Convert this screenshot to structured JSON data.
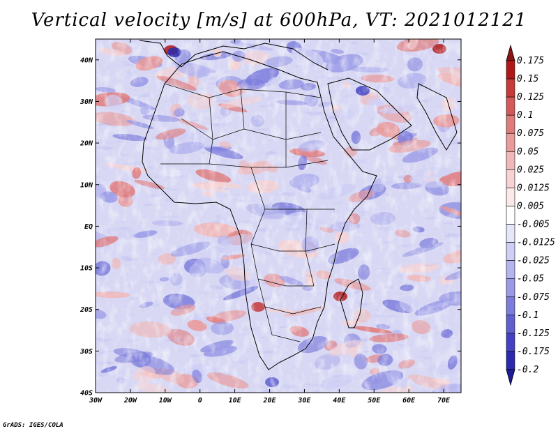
{
  "title": "Vertical velocity [m/s] at 600hPa, VT: 2021012121",
  "credit": "GrADS: IGES/COLA",
  "axes": {
    "lat_labels": [
      "40N",
      "30N",
      "20N",
      "10N",
      "EQ",
      "10S",
      "20S",
      "30S",
      "40S"
    ],
    "lat_values": [
      40,
      30,
      20,
      10,
      0,
      -10,
      -20,
      -30,
      -40
    ],
    "lon_labels": [
      "30W",
      "20W",
      "10W",
      "0",
      "10E",
      "20E",
      "30E",
      "40E",
      "50E",
      "60E",
      "70E"
    ],
    "lon_values": [
      -30,
      -20,
      -10,
      0,
      10,
      20,
      30,
      40,
      50,
      60,
      70
    ],
    "lon_range": [
      -30,
      75
    ],
    "lat_range": [
      -40,
      45
    ]
  },
  "colorbar": {
    "labels": [
      "0.175",
      "0.15",
      "0.125",
      "0.1",
      "0.075",
      "0.05",
      "0.025",
      "0.0125",
      "0.005",
      "-0.005",
      "-0.0125",
      "-0.025",
      "-0.05",
      "-0.075",
      "-0.1",
      "-0.125",
      "-0.175",
      "-0.2"
    ],
    "colors": [
      "#b01818",
      "#c63a3a",
      "#d45a5a",
      "#e07b7b",
      "#e99a9a",
      "#f0b8b8",
      "#f6d2d2",
      "#fbe8e8",
      "#ffffff",
      "#e6e6fa",
      "#cfcff5",
      "#b4b4ee",
      "#9999e6",
      "#7c7cdc",
      "#5f5fd0",
      "#4242c2",
      "#2a2aac"
    ],
    "top_arrow_color": "#8b1414",
    "bottom_arrow_color": "#1c1c98"
  },
  "map": {
    "land_outline_color": "#000000",
    "base_color": "#d8d8f4"
  }
}
